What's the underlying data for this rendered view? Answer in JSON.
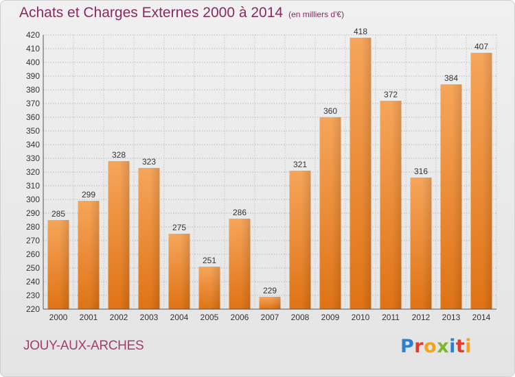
{
  "header": {
    "title": "Achats et Charges Externes 2000 à 2014",
    "unit": "(en milliers d'€)"
  },
  "footer": {
    "commune": "JOUY-AUX-ARCHES",
    "logo_letters": [
      "P",
      "r",
      "o",
      "x",
      "i",
      "t",
      "i"
    ],
    "logo_colors": [
      "#2e7fd0",
      "#e23b2e",
      "#f4a31a",
      "#7ab929",
      "#2e7fd0",
      "#e23b2e",
      "#f4a31a"
    ]
  },
  "chart_data": {
    "type": "bar",
    "title": "Achats et Charges Externes 2000 à 2014",
    "subtitle": "(en milliers d'€)",
    "categories": [
      "2000",
      "2001",
      "2002",
      "2003",
      "2004",
      "2005",
      "2006",
      "2007",
      "2008",
      "2009",
      "2010",
      "2011",
      "2012",
      "2013",
      "2014"
    ],
    "values": [
      285,
      299,
      328,
      323,
      275,
      251,
      286,
      229,
      321,
      360,
      418,
      372,
      316,
      384,
      407
    ],
    "ylim": [
      220,
      420
    ],
    "ytick_step": 10,
    "grid": true,
    "bar_color": "#f0932b",
    "data_labels": true
  }
}
